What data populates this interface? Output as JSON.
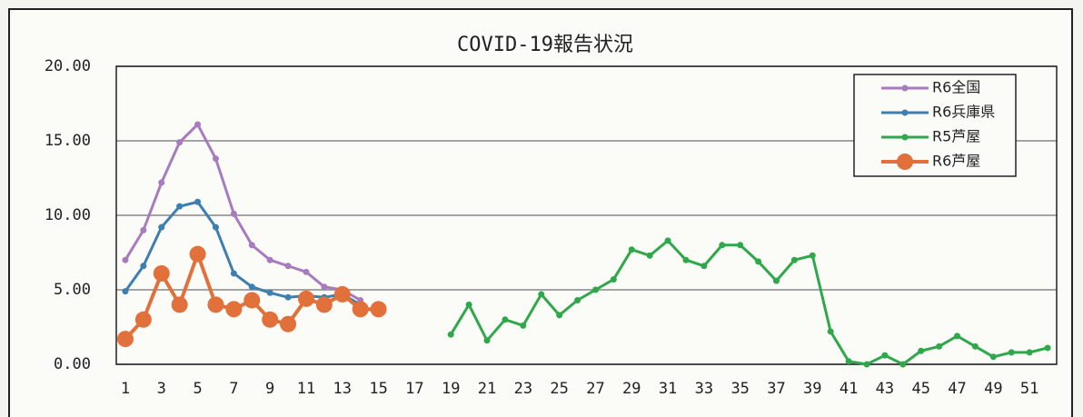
{
  "chart_data": {
    "type": "line",
    "title": "COVID-19報告状況",
    "categories": [
      1,
      null,
      3,
      null,
      5,
      null,
      7,
      null,
      9,
      null,
      11,
      null,
      13,
      null,
      15,
      null,
      17,
      null,
      19,
      null,
      21,
      null,
      23,
      null,
      25,
      null,
      27,
      null,
      29,
      null,
      31,
      null,
      33,
      null,
      35,
      null,
      37,
      null,
      39,
      null,
      41,
      null,
      43,
      null,
      45,
      null,
      47,
      null,
      49,
      null,
      51,
      null
    ],
    "series": [
      {
        "name": "R6全国",
        "color": "#a77bbd",
        "values": [
          7.0,
          9.0,
          12.2,
          14.9,
          16.1,
          13.8,
          10.1,
          8.0,
          7.0,
          6.6,
          6.2,
          5.2,
          5.0,
          4.3,
          null,
          null,
          null,
          null,
          null,
          null,
          null,
          null,
          null,
          null,
          null,
          null,
          null,
          null,
          null,
          null,
          null,
          null,
          null,
          null,
          null,
          null,
          null,
          null,
          null,
          null,
          null,
          null,
          null,
          null,
          null,
          null,
          null,
          null,
          null,
          null,
          null,
          null
        ]
      },
      {
        "name": "R6兵庫県",
        "color": "#3d7fb0",
        "values": [
          4.9,
          6.6,
          9.2,
          10.6,
          10.9,
          9.2,
          6.1,
          5.2,
          4.8,
          4.5,
          4.6,
          4.5,
          4.7,
          4.0,
          null,
          null,
          null,
          null,
          null,
          null,
          null,
          null,
          null,
          null,
          null,
          null,
          null,
          null,
          null,
          null,
          null,
          null,
          null,
          null,
          null,
          null,
          null,
          null,
          null,
          null,
          null,
          null,
          null,
          null,
          null,
          null,
          null,
          null,
          null,
          null,
          null,
          null
        ]
      },
      {
        "name": "R5芦屋",
        "color": "#2ea84a",
        "values": [
          null,
          null,
          null,
          null,
          null,
          null,
          null,
          null,
          null,
          null,
          null,
          null,
          null,
          null,
          null,
          null,
          null,
          null,
          2.0,
          4.0,
          1.6,
          3.0,
          2.6,
          4.7,
          3.3,
          4.3,
          5.0,
          5.7,
          7.7,
          7.3,
          8.3,
          7.0,
          6.6,
          8.0,
          8.0,
          6.9,
          5.6,
          7.0,
          7.3,
          2.2,
          0.2,
          0.0,
          0.6,
          0.0,
          0.9,
          1.2,
          1.9,
          1.2,
          0.5,
          0.8,
          0.8,
          1.1
        ]
      },
      {
        "name": "R6芦屋",
        "color": "#e2703a",
        "values": [
          1.7,
          3.0,
          6.1,
          4.0,
          7.4,
          4.0,
          3.7,
          4.3,
          3.0,
          2.7,
          4.4,
          4.0,
          4.7,
          3.7,
          3.7,
          null,
          null,
          null,
          null,
          null,
          null,
          null,
          null,
          null,
          null,
          null,
          null,
          null,
          null,
          null,
          null,
          null,
          null,
          null,
          null,
          null,
          null,
          null,
          null,
          null,
          null,
          null,
          null,
          null,
          null,
          null,
          null,
          null,
          null,
          null,
          null,
          null
        ]
      }
    ],
    "ylim": [
      0,
      20
    ],
    "yticks": [
      {
        "value": 0,
        "label": "0.00"
      },
      {
        "value": 5,
        "label": "5.00"
      },
      {
        "value": 10,
        "label": "10.00"
      },
      {
        "value": 15,
        "label": "15.00"
      },
      {
        "value": 20,
        "label": "20.00"
      }
    ],
    "grid": true,
    "legend": "top-right"
  }
}
